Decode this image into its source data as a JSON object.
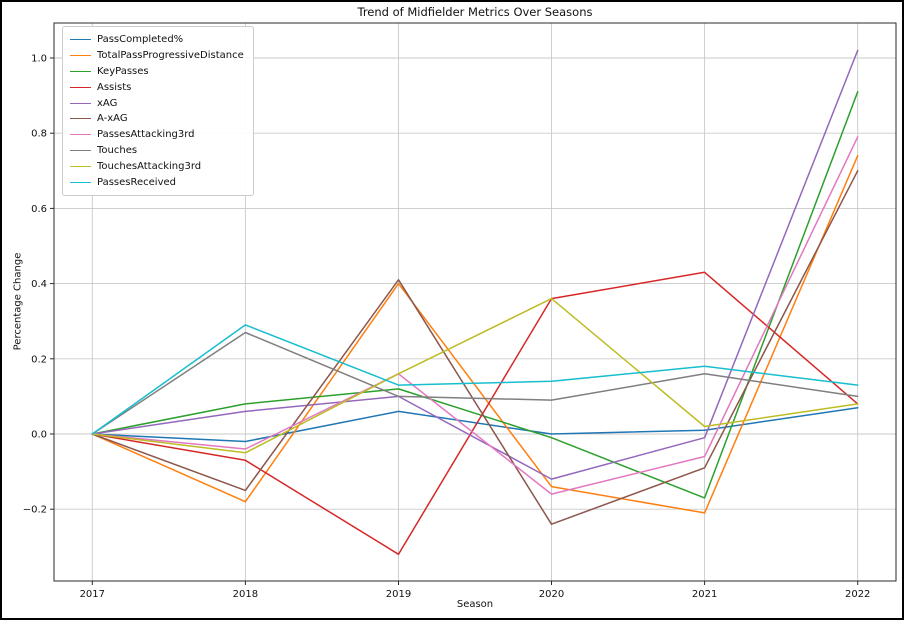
{
  "title": "Trend of Midfielder Metrics Over Seasons",
  "x_axis_label": "Season",
  "y_axis_label": "Percentage Change",
  "chart_data": {
    "type": "line",
    "title": "Trend of Midfielder Metrics Over Seasons",
    "xlabel": "Season",
    "ylabel": "Percentage Change",
    "grid": true,
    "legend_position": "upper-left",
    "x": [
      2017,
      2018,
      2019,
      2020,
      2021,
      2022
    ],
    "x_tick_labels": [
      "2017",
      "2018",
      "2019",
      "2020",
      "2021",
      "2022"
    ],
    "y_ticks": [
      -0.2,
      0.0,
      0.2,
      0.4,
      0.6,
      0.8,
      1.0
    ],
    "xlim": [
      2016.75,
      2022.25
    ],
    "ylim": [
      -0.391,
      1.093
    ],
    "series": [
      {
        "name": "PassCompleted%",
        "color": "#1f77b4",
        "values": [
          0.0,
          -0.02,
          0.06,
          0.0,
          0.01,
          0.07
        ]
      },
      {
        "name": "TotalPassProgressiveDistance",
        "color": "#ff7f0e",
        "values": [
          0.0,
          -0.18,
          0.4,
          -0.14,
          -0.21,
          0.74
        ]
      },
      {
        "name": "KeyPasses",
        "color": "#2ca02c",
        "values": [
          0.0,
          0.08,
          0.12,
          -0.01,
          -0.17,
          0.91
        ]
      },
      {
        "name": "Assists",
        "color": "#d62728",
        "values": [
          0.0,
          -0.07,
          -0.32,
          0.36,
          0.43,
          0.08
        ]
      },
      {
        "name": "xAG",
        "color": "#9467bd",
        "values": [
          0.0,
          0.06,
          0.1,
          -0.12,
          -0.01,
          1.02
        ]
      },
      {
        "name": "A-xAG",
        "color": "#8c564b",
        "values": [
          0.0,
          -0.15,
          0.41,
          -0.24,
          -0.09,
          0.7
        ]
      },
      {
        "name": "PassesAttacking3rd",
        "color": "#e377c2",
        "values": [
          0.0,
          -0.04,
          0.16,
          -0.16,
          -0.06,
          0.79
        ]
      },
      {
        "name": "Touches",
        "color": "#7f7f7f",
        "values": [
          0.0,
          0.27,
          0.1,
          0.09,
          0.16,
          0.1
        ]
      },
      {
        "name": "TouchesAttacking3rd",
        "color": "#bcbd22",
        "values": [
          0.0,
          -0.05,
          0.16,
          0.36,
          0.02,
          0.08
        ]
      },
      {
        "name": "PassesReceived",
        "color": "#17becf",
        "values": [
          0.0,
          0.29,
          0.13,
          0.14,
          0.18,
          0.13
        ]
      }
    ]
  },
  "colors": {
    "grid": "#c9c9c9",
    "spine": "#2a2a2a",
    "text": "#111111",
    "background": "#ffffff"
  }
}
